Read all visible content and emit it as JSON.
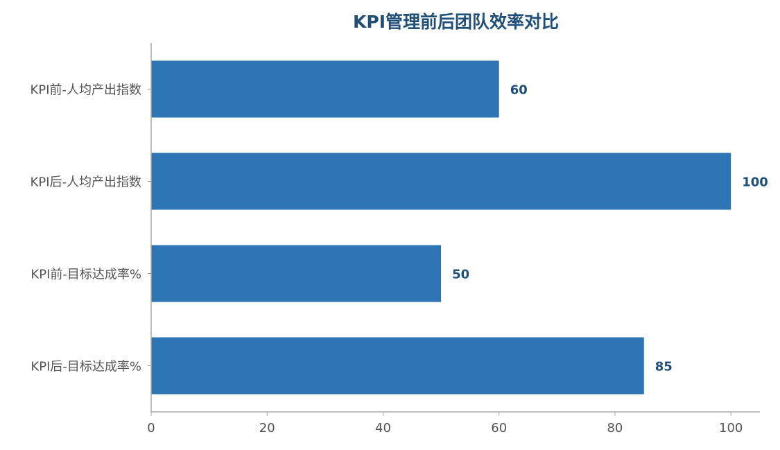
{
  "chart_data": {
    "type": "bar",
    "orientation": "horizontal",
    "title": "KPI管理前后团队效率对比",
    "xlabel": "",
    "ylabel": "",
    "categories": [
      "KPI前-人均产出指数",
      "KPI后-人均产出指数",
      "KPI前-目标达成率%",
      "KPI后-目标达成率%"
    ],
    "values": [
      60,
      100,
      50,
      85
    ],
    "data_labels": [
      "60",
      "100",
      "50",
      "85"
    ],
    "xlim": [
      0,
      105
    ],
    "xticks": [
      0,
      20,
      40,
      60,
      80,
      100
    ],
    "xtick_labels": [
      "0",
      "20",
      "40",
      "60",
      "80",
      "100"
    ],
    "grid": false,
    "legend": false,
    "bar_color": "#2e75b6",
    "label_color": "#1f4e79"
  }
}
